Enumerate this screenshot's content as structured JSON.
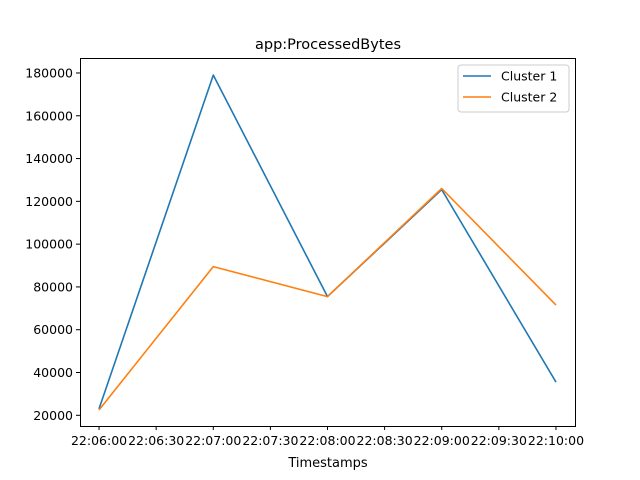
{
  "chart_data": {
    "type": "line",
    "title": "app:ProcessedBytes",
    "xlabel": "Timestamps",
    "ylabel": "",
    "x": [
      "22:06:00",
      "22:07:00",
      "22:08:00",
      "22:09:00",
      "22:10:00"
    ],
    "x_ticks": [
      "22:06:00",
      "22:06:30",
      "22:07:00",
      "22:07:30",
      "22:08:00",
      "22:08:30",
      "22:09:00",
      "22:09:30",
      "22:10:00"
    ],
    "y_ticks": [
      20000,
      40000,
      60000,
      80000,
      100000,
      120000,
      140000,
      160000,
      180000
    ],
    "xlim": [
      "22:05:50",
      "22:10:10"
    ],
    "ylim": [
      15000,
      187000
    ],
    "grid": false,
    "legend_position": "top-right",
    "series": [
      {
        "name": "Cluster 1",
        "color": "#1f77b4",
        "values": [
          23000,
          179000,
          75500,
          125500,
          35500
        ]
      },
      {
        "name": "Cluster 2",
        "color": "#ff7f0e",
        "values": [
          22500,
          89500,
          75500,
          126000,
          71500
        ]
      }
    ]
  }
}
